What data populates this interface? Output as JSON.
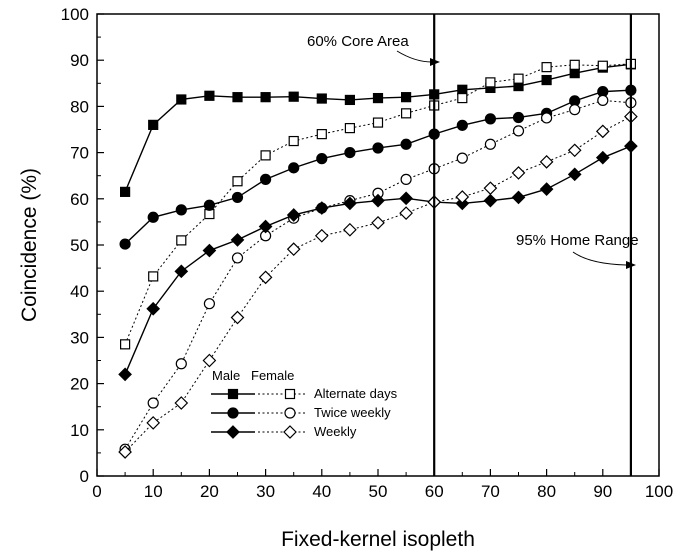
{
  "chart_data": {
    "type": "line",
    "xlabel": "Fixed-kernel isopleth",
    "ylabel": "Coincidence (%)",
    "xlim": [
      0,
      100
    ],
    "ylim": [
      0,
      100
    ],
    "x_ticks": [
      0,
      10,
      20,
      30,
      40,
      50,
      60,
      70,
      80,
      90,
      100
    ],
    "y_ticks": [
      0,
      10,
      20,
      30,
      40,
      50,
      60,
      70,
      80,
      90,
      100
    ],
    "x": [
      5,
      10,
      15,
      20,
      25,
      30,
      35,
      40,
      45,
      50,
      55,
      60,
      65,
      70,
      75,
      80,
      85,
      90,
      95
    ],
    "grid": false,
    "legend": {
      "position": "bottom-center",
      "header_male": "Male",
      "header_female": "Female",
      "entries": [
        "Alternate days",
        "Twice weekly",
        "Weekly"
      ]
    },
    "series": [
      {
        "name": "Alternate days",
        "group": "Male",
        "marker": "square",
        "filled": true,
        "dash": false,
        "values": [
          61.5,
          76,
          81.5,
          82.3,
          82,
          82,
          82.1,
          81.7,
          81.4,
          81.8,
          82,
          82.6,
          83.6,
          84,
          84.4,
          85.7,
          87.2,
          88.4,
          89.1
        ]
      },
      {
        "name": "Alternate days",
        "group": "Female",
        "marker": "square",
        "filled": false,
        "dash": true,
        "values": [
          28.5,
          43.2,
          51,
          56.7,
          63.8,
          69.4,
          72.5,
          74,
          75.3,
          76.5,
          78.5,
          80.2,
          81.8,
          85.2,
          86,
          88.5,
          89,
          88.8,
          89.2
        ]
      },
      {
        "name": "Twice weekly",
        "group": "Male",
        "marker": "circle",
        "filled": true,
        "dash": false,
        "values": [
          50.2,
          56,
          57.6,
          58.6,
          60.3,
          64.2,
          66.7,
          68.7,
          70,
          71,
          71.8,
          74,
          75.9,
          77.3,
          77.6,
          78.5,
          81.2,
          83.2,
          83.5
        ]
      },
      {
        "name": "Twice weekly",
        "group": "Female",
        "marker": "circle",
        "filled": false,
        "dash": true,
        "values": [
          5.8,
          15.8,
          24.3,
          37.3,
          47.2,
          52,
          55.8,
          58,
          59.6,
          61.2,
          64.2,
          66.5,
          68.8,
          71.8,
          74.7,
          77.5,
          79.3,
          81.3,
          80.8
        ]
      },
      {
        "name": "Weekly",
        "group": "Male",
        "marker": "diamond",
        "filled": true,
        "dash": false,
        "values": [
          22,
          36.2,
          44.3,
          48.8,
          51.1,
          54,
          56.5,
          58,
          59,
          59.6,
          60.1,
          59.3,
          59,
          59.6,
          60.3,
          62.1,
          65.3,
          68.9,
          71.4
        ]
      },
      {
        "name": "Weekly",
        "group": "Female",
        "marker": "diamond",
        "filled": false,
        "dash": true,
        "values": [
          5.2,
          11.5,
          15.8,
          25,
          34.3,
          43,
          49.1,
          52,
          53.3,
          54.8,
          56.9,
          59.3,
          60.4,
          62.3,
          65.6,
          68,
          70.5,
          74.6,
          77.8
        ]
      }
    ],
    "annotations": [
      {
        "text": "60% Core Area",
        "x_line": 60
      },
      {
        "text": "95% Home Range",
        "x_line": 95
      }
    ]
  }
}
